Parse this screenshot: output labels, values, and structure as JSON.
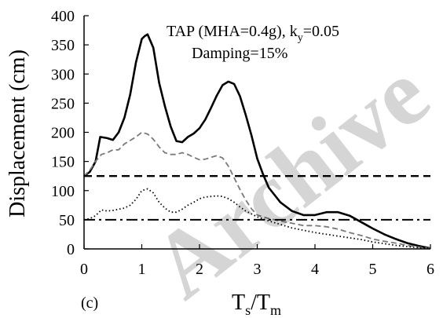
{
  "chart_data": {
    "type": "line",
    "panel_label": "(c)",
    "annotation_line1_main": "TAP  (MHA=0.4g), k",
    "annotation_line1_sub": "y",
    "annotation_line1_tail": "=0.05",
    "annotation_line2": "Damping=15%",
    "xlabel_main": "T",
    "xlabel_sub1": "s",
    "xlabel_mid": "/T",
    "xlabel_sub2": "m",
    "ylabel": "Displacement (cm)",
    "xlim": [
      0,
      6
    ],
    "ylim": [
      0,
      400
    ],
    "xticks": [
      "0",
      "1",
      "2",
      "3",
      "4",
      "5",
      "6"
    ],
    "yticks": [
      "0",
      "50",
      "100",
      "150",
      "200",
      "250",
      "300",
      "350",
      "400"
    ],
    "watermark": "Archive",
    "series": [
      {
        "style": "solid",
        "x": [
          0,
          0.1,
          0.2,
          0.28,
          0.4,
          0.5,
          0.6,
          0.7,
          0.8,
          0.9,
          1.0,
          1.05,
          1.1,
          1.2,
          1.3,
          1.4,
          1.5,
          1.6,
          1.7,
          1.8,
          1.9,
          2.0,
          2.1,
          2.2,
          2.3,
          2.4,
          2.5,
          2.6,
          2.7,
          2.8,
          2.9,
          3.0,
          3.1,
          3.2,
          3.4,
          3.6,
          3.8,
          4.0,
          4.2,
          4.4,
          4.6,
          4.8,
          5.0,
          5.2,
          5.4,
          5.6,
          5.8,
          5.9,
          6.0
        ],
        "y": [
          125,
          132,
          150,
          192,
          190,
          187,
          200,
          225,
          265,
          320,
          360,
          365,
          368,
          345,
          285,
          245,
          210,
          185,
          183,
          192,
          198,
          207,
          222,
          242,
          263,
          281,
          287,
          283,
          262,
          230,
          195,
          155,
          128,
          105,
          80,
          65,
          58,
          58,
          63,
          63,
          57,
          46,
          35,
          25,
          17,
          10,
          5,
          3,
          1
        ]
      },
      {
        "style": "dashed",
        "color": "#7a7a7a",
        "x": [
          0,
          0.1,
          0.2,
          0.3,
          0.4,
          0.5,
          0.6,
          0.7,
          0.8,
          0.9,
          1.0,
          1.1,
          1.2,
          1.3,
          1.4,
          1.5,
          1.6,
          1.7,
          1.8,
          1.9,
          2.0,
          2.1,
          2.2,
          2.3,
          2.4,
          2.5,
          2.6,
          2.7,
          2.8,
          2.9,
          3.0,
          3.2,
          3.4,
          3.6,
          3.8,
          4.0,
          4.2,
          4.4,
          4.6,
          4.8,
          5.0,
          5.2,
          5.4,
          5.6,
          5.8,
          6.0
        ],
        "y": [
          125,
          135,
          150,
          162,
          165,
          170,
          170,
          180,
          186,
          192,
          200,
          197,
          188,
          175,
          165,
          162,
          162,
          165,
          162,
          157,
          153,
          154,
          157,
          160,
          156,
          142,
          122,
          102,
          84,
          69,
          58,
          52,
          48,
          44,
          40,
          40,
          38,
          34,
          28,
          23,
          17,
          13,
          10,
          6,
          3,
          1
        ]
      },
      {
        "style": "dotted",
        "x": [
          0,
          0.1,
          0.2,
          0.3,
          0.4,
          0.5,
          0.6,
          0.7,
          0.8,
          0.9,
          1.0,
          1.1,
          1.2,
          1.3,
          1.4,
          1.5,
          1.6,
          1.7,
          1.8,
          1.9,
          2.0,
          2.1,
          2.2,
          2.3,
          2.4,
          2.5,
          2.6,
          2.7,
          2.8,
          2.9,
          3.0,
          3.2,
          3.4,
          3.6,
          3.8,
          4.0,
          4.2,
          4.4,
          4.6,
          4.8,
          5.0,
          5.2,
          5.4,
          5.6,
          5.8,
          6.0
        ],
        "y": [
          50,
          52,
          57,
          67,
          65,
          66,
          68,
          70,
          75,
          85,
          100,
          103,
          96,
          80,
          70,
          63,
          63,
          68,
          75,
          80,
          86,
          89,
          90,
          91,
          90,
          86,
          80,
          72,
          65,
          60,
          55,
          48,
          42,
          36,
          32,
          28,
          25,
          22,
          19,
          16,
          12,
          9,
          6,
          4,
          2,
          1
        ]
      },
      {
        "style": "dashed-bold",
        "x": [
          0,
          6
        ],
        "y": [
          125,
          125
        ]
      },
      {
        "style": "dash-dot",
        "x": [
          0,
          6
        ],
        "y": [
          50,
          50
        ]
      }
    ]
  }
}
